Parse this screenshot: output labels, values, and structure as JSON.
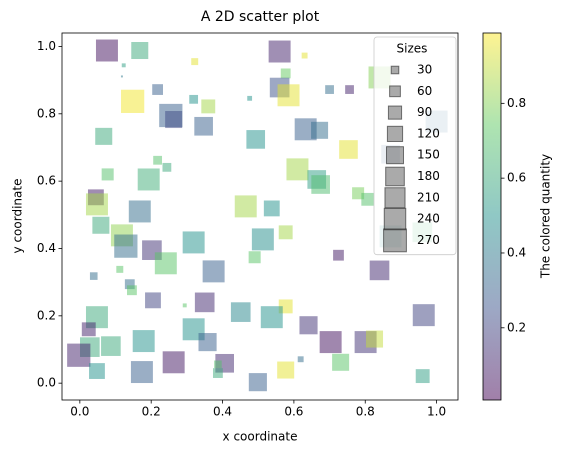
{
  "chart_data": {
    "type": "scatter",
    "title": "A 2D scatter plot",
    "x_label": "x coordinate",
    "y_label": "y coordinate",
    "xlim": [
      -0.05,
      1.06
    ],
    "ylim": [
      -0.05,
      1.04
    ],
    "xticks": [
      {
        "value": 0,
        "label": "0.0"
      },
      0.2,
      0.4,
      0.6,
      0.8,
      {
        "value": 1,
        "label": "1.0"
      }
    ],
    "yticks": [
      {
        "value": 0,
        "label": "0.0"
      },
      0.2,
      0.4,
      0.6,
      0.8,
      {
        "value": 1,
        "label": "1.0"
      }
    ],
    "colorbar": {
      "label": "The colored quantity",
      "lim": [
        0.007,
        0.988
      ],
      "ticks": [
        0.2,
        0.4,
        0.6,
        0.8
      ],
      "colormap": "viridis"
    },
    "alpha": 0.5,
    "size_legend": {
      "title": "Sizes",
      "sizes": [
        30,
        60,
        90,
        120,
        150,
        180,
        210,
        240,
        270
      ],
      "color": "#555555",
      "loc": "upper right"
    },
    "x": [
      0.076,
      0.168,
      0.322,
      0.56,
      0.63,
      0.123,
      0.118,
      0.577,
      0.56,
      0.585,
      0.148,
      0.218,
      0.319,
      0.36,
      0.476,
      0.255,
      0.263,
      0.347,
      0.7,
      0.756,
      0.84,
      0.633,
      0.672,
      0.067,
      0.493,
      0.753,
      0.871,
      1.0,
      0.218,
      0.244,
      0.193,
      0.078,
      0.61,
      0.664,
      0.675,
      0.78,
      0.807,
      0.045,
      0.048,
      0.059,
      0.168,
      0.465,
      0.538,
      0.118,
      0.129,
      0.202,
      0.319,
      0.513,
      0.577,
      0.241,
      0.49,
      0.725,
      0.375,
      0.84,
      0.039,
      0.112,
      0.14,
      0.146,
      0.205,
      0.35,
      0.294,
      0.577,
      0.048,
      0.451,
      0.538,
      0.964,
      0.025,
      0.319,
      0.641,
      0.179,
      0.358,
      0.703,
      0.801,
      0.826,
      0.087,
      0.028,
      -0.003,
      0.048,
      0.174,
      0.263,
      0.406,
      0.387,
      0.387,
      0.499,
      0.577,
      0.619,
      0.731,
      0.961,
      0.871,
      0.96
    ],
    "y": [
      0.988,
      0.988,
      0.955,
      0.985,
      0.973,
      0.944,
      0.911,
      0.92,
      0.878,
      0.855,
      0.837,
      0.872,
      0.843,
      0.822,
      0.846,
      0.795,
      0.783,
      0.763,
      0.872,
      0.872,
      0.908,
      0.754,
      0.751,
      0.733,
      0.724,
      0.694,
      0.68,
      0.777,
      0.662,
      0.641,
      0.605,
      0.62,
      0.635,
      0.605,
      0.59,
      0.564,
      0.546,
      0.552,
      0.531,
      0.469,
      0.51,
      0.525,
      0.519,
      0.439,
      0.407,
      0.395,
      0.418,
      0.427,
      0.448,
      0.356,
      0.374,
      0.38,
      0.332,
      0.335,
      0.318,
      0.338,
      0.294,
      0.276,
      0.246,
      0.24,
      0.231,
      0.228,
      0.196,
      0.211,
      0.196,
      0.202,
      0.16,
      0.16,
      0.172,
      0.125,
      0.122,
      0.122,
      0.122,
      0.131,
      0.11,
      0.107,
      0.083,
      0.036,
      0.033,
      0.062,
      0.059,
      0.03,
      0.056,
      0.003,
      0.039,
      0.071,
      0.062,
      0.021,
      0.436,
      0.448
    ],
    "sizes": [
      250,
      150,
      25,
      250,
      18,
      8,
      2,
      50,
      200,
      250,
      280,
      60,
      40,
      100,
      12,
      280,
      150,
      180,
      40,
      40,
      250,
      250,
      150,
      150,
      180,
      180,
      180,
      250,
      40,
      40,
      250,
      75,
      250,
      180,
      180,
      75,
      85,
      130,
      250,
      150,
      250,
      250,
      130,
      250,
      280,
      200,
      250,
      250,
      100,
      250,
      75,
      60,
      250,
      200,
      30,
      25,
      50,
      50,
      130,
      200,
      8,
      100,
      250,
      200,
      250,
      250,
      100,
      250,
      170,
      250,
      170,
      250,
      250,
      150,
      200,
      200,
      280,
      130,
      250,
      250,
      180,
      50,
      30,
      170,
      150,
      18,
      150,
      100,
      250,
      200
    ],
    "color_values": [
      0.05,
      0.6,
      0.95,
      0.1,
      0.95,
      0.55,
      0.4,
      0.75,
      0.25,
      0.95,
      0.97,
      0.3,
      0.5,
      0.85,
      0.5,
      0.3,
      0.22,
      0.3,
      0.35,
      0.1,
      0.8,
      0.3,
      0.35,
      0.6,
      0.5,
      0.95,
      0.3,
      0.35,
      0.7,
      0.6,
      0.62,
      0.7,
      0.85,
      0.55,
      0.68,
      0.78,
      0.7,
      0.08,
      0.85,
      0.6,
      0.35,
      0.85,
      0.5,
      0.82,
      0.35,
      0.15,
      0.5,
      0.48,
      0.85,
      0.72,
      0.72,
      0.08,
      0.3,
      0.12,
      0.35,
      0.72,
      0.35,
      0.72,
      0.2,
      0.12,
      0.72,
      0.95,
      0.6,
      0.45,
      0.5,
      0.2,
      0.1,
      0.5,
      0.15,
      0.5,
      0.3,
      0.05,
      0.15,
      0.9,
      0.6,
      0.6,
      0.1,
      0.5,
      0.3,
      0.07,
      0.12,
      0.6,
      0.7,
      0.3,
      0.95,
      0.35,
      0.72,
      0.55,
      0.5,
      0.65
    ]
  }
}
